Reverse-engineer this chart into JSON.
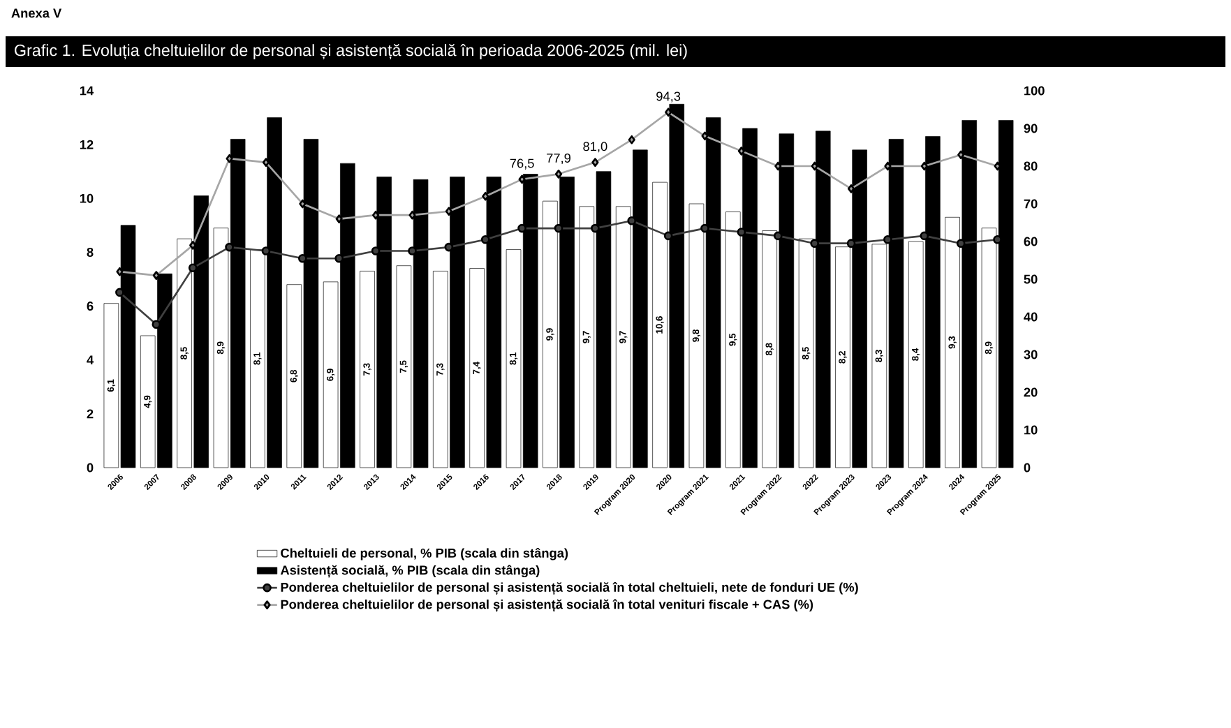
{
  "chart_data": {
    "type": "bar",
    "title": "Grafic 1. Evoluția cheltuielilor de personal și asistență socială în perioada 2006-2025 (mil. lei)",
    "annotations": [
      "Anexa V"
    ],
    "categories": [
      "2006",
      "2007",
      "2008",
      "2009",
      "2010",
      "2011",
      "2012",
      "2013",
      "2014",
      "2015",
      "2016",
      "2017",
      "2018",
      "2019",
      "Program 2020",
      "2020",
      "Program 2021",
      "2021",
      "Program 2022",
      "2022",
      "Program 2023",
      "2023",
      "Program 2024",
      "2024",
      "Program 2025"
    ],
    "series": [
      {
        "name": "Cheltuieli de personal, % PIB (scala din stânga)",
        "color": "#ffffff",
        "values": [
          6.1,
          4.9,
          8.5,
          8.9,
          8.1,
          6.8,
          6.9,
          7.3,
          7.5,
          7.3,
          7.4,
          8.1,
          9.9,
          9.7,
          9.7,
          10.6,
          9.8,
          9.5,
          8.8,
          8.5,
          8.2,
          8.3,
          8.4,
          9.3,
          8.9
        ],
        "value_labels": [
          "6,1",
          "4,9",
          "8,5",
          "8,9",
          "8,1",
          "6,8",
          "6,9",
          "7,3",
          "7,5",
          "7,3",
          "7,4",
          "8,1",
          "9,9",
          "9,7",
          "9,7",
          "10,6",
          "9,8",
          "9,5",
          "8,8",
          "8,5",
          "8,2",
          "8,3",
          "8,4",
          "9,3",
          "8,9"
        ]
      },
      {
        "name": "Asistență socială, % PIB (scala din stânga)",
        "color": "#000000",
        "values": [
          9.0,
          7.2,
          10.1,
          12.2,
          13.0,
          12.2,
          11.3,
          10.8,
          10.7,
          10.8,
          10.8,
          10.9,
          10.8,
          11.0,
          11.8,
          13.5,
          13.0,
          12.6,
          12.4,
          12.5,
          11.8,
          12.2,
          12.3,
          12.9,
          12.9
        ]
      },
      {
        "name": "Ponderea cheltuielilor de personal și asistență socială în total cheltuieli, nete de fonduri UE (%)",
        "type": "line",
        "axis": "y2",
        "color": "#404040",
        "marker": "circle",
        "values": [
          46.5,
          38,
          53,
          58.5,
          57.5,
          55.5,
          55.5,
          57.5,
          57.5,
          58.5,
          60.5,
          63.5,
          63.5,
          63.5,
          65.5,
          61.5,
          63.5,
          62.5,
          61.5,
          59.5,
          59.5,
          60.5,
          61.5,
          59.5,
          60.5
        ]
      },
      {
        "name": "Ponderea cheltuielilor de personal și asistență socială în total venituri fiscale + CAS (%)",
        "type": "line",
        "axis": "y2",
        "color": "#a6a6a6",
        "marker": "diamond",
        "values": [
          52,
          51,
          59,
          82,
          81,
          70,
          66,
          67,
          67,
          68,
          72,
          76.5,
          77.9,
          81.0,
          87,
          94.3,
          88,
          84,
          80,
          80,
          74,
          80,
          80,
          83,
          80
        ],
        "value_labels": [
          null,
          null,
          null,
          null,
          null,
          null,
          null,
          null,
          null,
          null,
          null,
          "76,5",
          "77,9",
          "81,0",
          null,
          "94,3",
          null,
          null,
          null,
          null,
          null,
          null,
          null,
          null,
          null
        ]
      }
    ],
    "ylim": [
      0,
      14
    ],
    "yticks": [
      0,
      2,
      4,
      6,
      8,
      10,
      12,
      14
    ],
    "y2lim": [
      0,
      100
    ],
    "y2ticks": [
      0,
      10,
      20,
      30,
      40,
      50,
      60,
      70,
      80,
      90,
      100
    ],
    "legend": "bottom"
  }
}
